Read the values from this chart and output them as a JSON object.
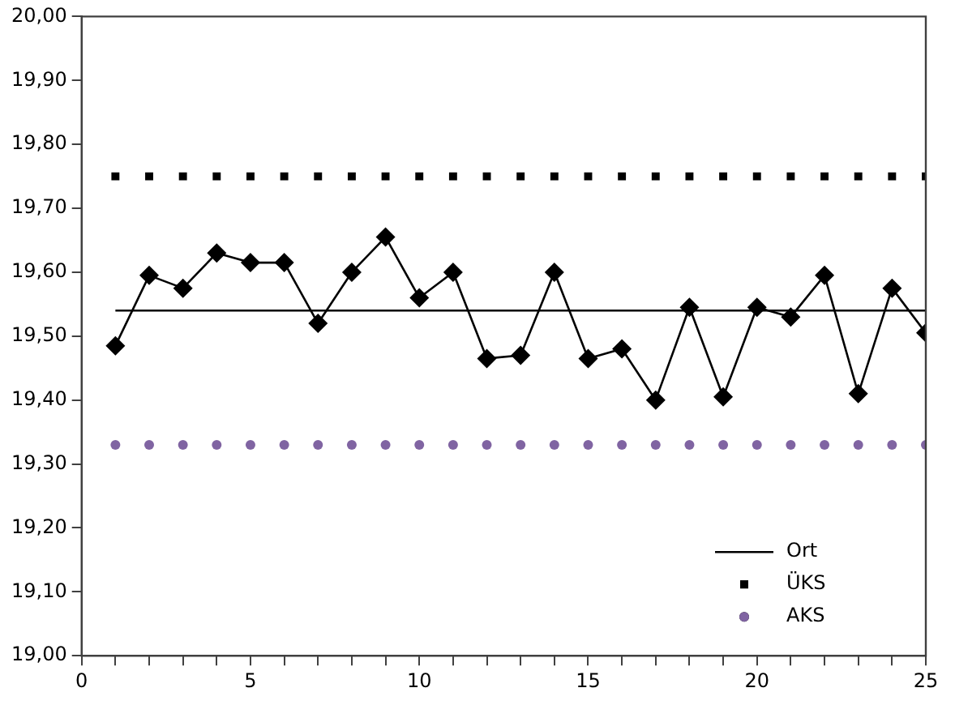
{
  "chart_data": {
    "type": "line",
    "x": [
      1,
      2,
      3,
      4,
      5,
      6,
      7,
      8,
      9,
      10,
      11,
      12,
      13,
      14,
      15,
      16,
      17,
      18,
      19,
      20,
      21,
      22,
      23,
      24,
      25
    ],
    "series": [
      {
        "color": "#000000",
        "marker": "diamond",
        "line_style": "solid",
        "values": [
          19.485,
          19.595,
          19.575,
          19.63,
          19.615,
          19.615,
          19.52,
          19.6,
          19.655,
          19.56,
          19.6,
          19.465,
          19.47,
          19.6,
          19.465,
          19.48,
          19.4,
          19.545,
          19.405,
          19.545,
          19.53,
          19.595,
          19.41,
          19.575,
          19.505
        ]
      },
      {
        "name": "Ort",
        "color": "#000000",
        "marker": "none",
        "line_style": "solid",
        "values": [
          19.54,
          19.54,
          19.54,
          19.54,
          19.54,
          19.54,
          19.54,
          19.54,
          19.54,
          19.54,
          19.54,
          19.54,
          19.54,
          19.54,
          19.54,
          19.54,
          19.54,
          19.54,
          19.54,
          19.54,
          19.54,
          19.54,
          19.54,
          19.54,
          19.54
        ]
      },
      {
        "name": "ÜKS",
        "type": "scatter",
        "color": "#000000",
        "marker": "square",
        "values": [
          19.75,
          19.75,
          19.75,
          19.75,
          19.75,
          19.75,
          19.75,
          19.75,
          19.75,
          19.75,
          19.75,
          19.75,
          19.75,
          19.75,
          19.75,
          19.75,
          19.75,
          19.75,
          19.75,
          19.75,
          19.75,
          19.75,
          19.75,
          19.75,
          19.75
        ]
      },
      {
        "name": "AKS",
        "type": "scatter",
        "color": "#8064a2",
        "marker": "circle",
        "values": [
          19.33,
          19.33,
          19.33,
          19.33,
          19.33,
          19.33,
          19.33,
          19.33,
          19.33,
          19.33,
          19.33,
          19.33,
          19.33,
          19.33,
          19.33,
          19.33,
          19.33,
          19.33,
          19.33,
          19.33,
          19.33,
          19.33,
          19.33,
          19.33,
          19.33
        ]
      }
    ],
    "xlim": [
      0,
      25
    ],
    "xticks": [
      0,
      {
        "value": 1,
        "label": null
      },
      {
        "value": 2,
        "label": null
      },
      {
        "value": 3,
        "label": null
      },
      {
        "value": 4,
        "label": null
      },
      5,
      {
        "value": 6,
        "label": null
      },
      {
        "value": 7,
        "label": null
      },
      {
        "value": 8,
        "label": null
      },
      {
        "value": 9,
        "label": null
      },
      10,
      {
        "value": 11,
        "label": null
      },
      {
        "value": 12,
        "label": null
      },
      {
        "value": 13,
        "label": null
      },
      {
        "value": 14,
        "label": null
      },
      15,
      {
        "value": 16,
        "label": null
      },
      {
        "value": 17,
        "label": null
      },
      {
        "value": 18,
        "label": null
      },
      {
        "value": 19,
        "label": null
      },
      20,
      {
        "value": 21,
        "label": null
      },
      {
        "value": 22,
        "label": null
      },
      {
        "value": 23,
        "label": null
      },
      {
        "value": 24,
        "label": null
      },
      25
    ],
    "ylim": [
      19,
      20
    ],
    "yticks": [
      {
        "value": 19,
        "label": "19,00"
      },
      {
        "value": 19.1,
        "label": "19,10"
      },
      {
        "value": 19.2,
        "label": "19,20"
      },
      {
        "value": 19.3,
        "label": "19,30"
      },
      {
        "value": 19.4,
        "label": "19,40"
      },
      {
        "value": 19.5,
        "label": "19,50"
      },
      {
        "value": 19.6,
        "label": "19,60"
      },
      {
        "value": 19.7,
        "label": "19,70"
      },
      {
        "value": 19.8,
        "label": "19,80"
      },
      {
        "value": 19.9,
        "label": "19,90"
      },
      {
        "value": 20,
        "label": "20,00"
      }
    ],
    "grid": false,
    "legend": "bottom right"
  }
}
